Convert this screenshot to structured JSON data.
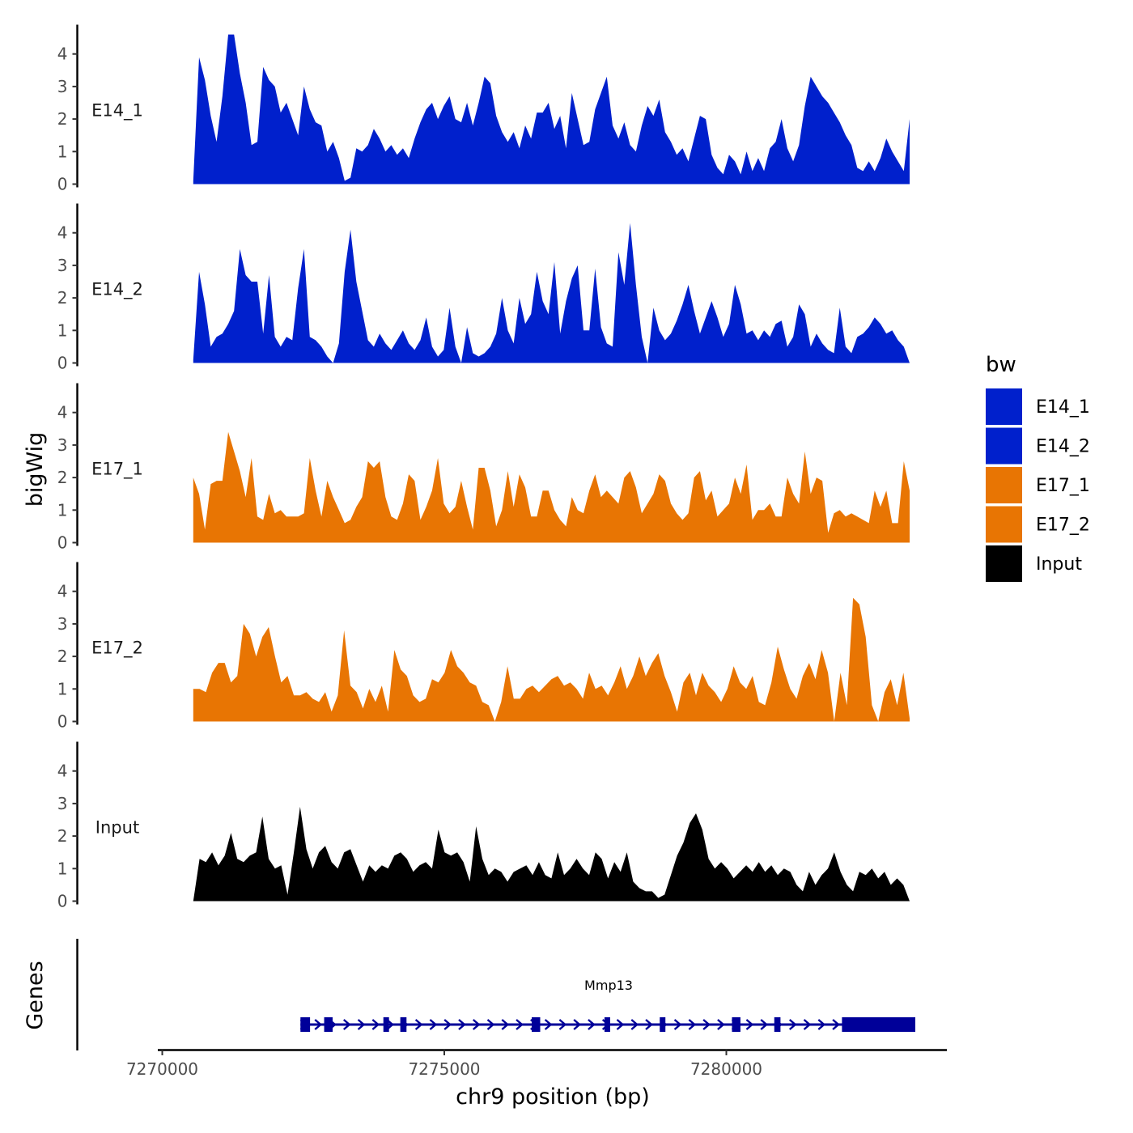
{
  "chart_data": {
    "type": "area",
    "ylabel": "bigWig",
    "genes_label": "Genes",
    "xlabel": "chr9 position (bp)",
    "xlim": [
      7269900,
      7283900
    ],
    "x_ticks": [
      7270000,
      7275000,
      7280000
    ],
    "x_tick_labels": [
      "7270000",
      "7275000",
      "7280000"
    ],
    "ylim": [
      0,
      4.7
    ],
    "y_ticks": [
      0,
      1,
      2,
      3,
      4
    ],
    "y_tick_labels": [
      "0",
      "1",
      "2",
      "3",
      "4"
    ],
    "legend": {
      "title": "bw",
      "position": "right",
      "entries": [
        {
          "label": "E14_1",
          "color": "#0020CC"
        },
        {
          "label": "E14_2",
          "color": "#0020CC"
        },
        {
          "label": "E17_1",
          "color": "#E87503"
        },
        {
          "label": "E17_2",
          "color": "#E87503"
        },
        {
          "label": "Input",
          "color": "#000000"
        }
      ]
    },
    "series": [
      {
        "name": "E14_1",
        "color": "#0020CC",
        "x_start": 7270550,
        "x_end": 7283250,
        "values": [
          0.1,
          3.9,
          3.2,
          2.1,
          1.3,
          2.7,
          4.6,
          4.6,
          3.4,
          2.5,
          1.2,
          1.3,
          3.6,
          3.2,
          3.0,
          2.2,
          2.5,
          2.0,
          1.5,
          3.0,
          2.3,
          1.9,
          1.8,
          1.0,
          1.3,
          0.8,
          0.1,
          0.2,
          1.1,
          1.0,
          1.2,
          1.7,
          1.4,
          1.0,
          1.2,
          0.9,
          1.1,
          0.8,
          1.4,
          1.9,
          2.3,
          2.5,
          2.0,
          2.4,
          2.7,
          2.0,
          1.9,
          2.5,
          1.8,
          2.5,
          3.3,
          3.1,
          2.1,
          1.6,
          1.3,
          1.6,
          1.1,
          1.8,
          1.4,
          2.2,
          2.2,
          2.5,
          1.7,
          2.1,
          1.1,
          2.8,
          2.0,
          1.2,
          1.3,
          2.3,
          2.8,
          3.3,
          1.8,
          1.4,
          1.9,
          1.2,
          1.0,
          1.8,
          2.4,
          2.1,
          2.6,
          1.6,
          1.3,
          0.9,
          1.1,
          0.7,
          1.4,
          2.1,
          2.0,
          0.9,
          0.5,
          0.3,
          0.9,
          0.7,
          0.3,
          1.0,
          0.4,
          0.8,
          0.4,
          1.1,
          1.3,
          2.0,
          1.1,
          0.7,
          1.2,
          2.4,
          3.3,
          3.0,
          2.7,
          2.5,
          2.2,
          1.9,
          1.5,
          1.2,
          0.5,
          0.4,
          0.7,
          0.4,
          0.8,
          1.4,
          1.0,
          0.7,
          0.4,
          2.0
        ],
        "label": "E14_1"
      },
      {
        "name": "E14_2",
        "color": "#0020CC",
        "x_start": 7270550,
        "x_end": 7283250,
        "values": [
          0.1,
          2.8,
          1.8,
          0.5,
          0.8,
          0.9,
          1.2,
          1.6,
          3.5,
          2.7,
          2.5,
          2.5,
          0.9,
          2.7,
          0.8,
          0.5,
          0.8,
          0.7,
          2.3,
          3.5,
          0.8,
          0.7,
          0.5,
          0.2,
          0.0,
          0.6,
          2.8,
          4.1,
          2.5,
          1.6,
          0.7,
          0.5,
          0.9,
          0.6,
          0.4,
          0.7,
          1.0,
          0.6,
          0.4,
          0.7,
          1.4,
          0.5,
          0.2,
          0.4,
          1.7,
          0.5,
          0.0,
          1.1,
          0.3,
          0.2,
          0.3,
          0.5,
          0.9,
          2.0,
          1.0,
          0.6,
          2.0,
          1.2,
          1.5,
          2.8,
          1.9,
          1.5,
          3.1,
          0.9,
          1.9,
          2.6,
          3.0,
          1.0,
          1.0,
          2.9,
          1.1,
          0.6,
          0.5,
          3.4,
          2.4,
          4.3,
          2.4,
          0.8,
          0.0,
          1.7,
          1.0,
          0.7,
          0.9,
          1.3,
          1.8,
          2.4,
          1.6,
          0.9,
          1.4,
          1.9,
          1.4,
          0.8,
          1.2,
          2.4,
          1.8,
          0.9,
          1.0,
          0.7,
          1.0,
          0.8,
          1.2,
          1.3,
          0.5,
          0.8,
          1.8,
          1.5,
          0.5,
          0.9,
          0.6,
          0.4,
          0.3,
          1.7,
          0.5,
          0.3,
          0.8,
          0.9,
          1.1,
          1.4,
          1.2,
          0.9,
          1.0,
          0.7,
          0.5,
          0.0
        ],
        "label": "E14_2"
      },
      {
        "name": "E17_1",
        "color": "#E87503",
        "x_start": 7270550,
        "x_end": 7283250,
        "values": [
          2.0,
          1.5,
          0.4,
          1.8,
          1.9,
          1.9,
          3.4,
          2.8,
          2.2,
          1.4,
          2.6,
          0.8,
          0.7,
          1.5,
          0.9,
          1.0,
          0.8,
          0.8,
          0.8,
          0.9,
          2.6,
          1.6,
          0.8,
          1.9,
          1.4,
          1.0,
          0.6,
          0.7,
          1.1,
          1.4,
          2.5,
          2.3,
          2.5,
          1.4,
          0.8,
          0.7,
          1.2,
          2.1,
          1.9,
          0.7,
          1.1,
          1.6,
          2.6,
          1.2,
          0.9,
          1.1,
          1.9,
          1.1,
          0.4,
          2.3,
          2.3,
          1.6,
          0.5,
          1.0,
          2.2,
          1.1,
          2.1,
          1.7,
          0.8,
          0.8,
          1.6,
          1.6,
          1.0,
          0.7,
          0.5,
          1.4,
          1.0,
          0.9,
          1.6,
          2.1,
          1.4,
          1.6,
          1.4,
          1.2,
          2.0,
          2.2,
          1.7,
          0.9,
          1.2,
          1.5,
          2.1,
          1.9,
          1.2,
          0.9,
          0.7,
          0.9,
          2.0,
          2.2,
          1.3,
          1.6,
          0.8,
          1.0,
          1.2,
          2.0,
          1.5,
          2.4,
          0.7,
          1.0,
          1.0,
          1.2,
          0.8,
          0.8,
          2.0,
          1.5,
          1.2,
          2.8,
          1.5,
          2.0,
          1.9,
          0.3,
          0.9,
          1.0,
          0.8,
          0.9,
          0.8,
          0.7,
          0.6,
          1.6,
          1.1,
          1.6,
          0.6,
          0.6,
          2.5,
          1.6
        ],
        "label": "E17_1"
      },
      {
        "name": "E17_2",
        "color": "#E87503",
        "x_start": 7270550,
        "x_end": 7283250,
        "values": [
          1.0,
          1.0,
          0.9,
          1.5,
          1.8,
          1.8,
          1.2,
          1.4,
          3.0,
          2.7,
          2.0,
          2.6,
          2.9,
          2.0,
          1.2,
          1.4,
          0.8,
          0.8,
          0.9,
          0.7,
          0.6,
          0.9,
          0.3,
          0.8,
          2.8,
          1.1,
          0.9,
          0.4,
          1.0,
          0.6,
          1.1,
          0.3,
          2.2,
          1.6,
          1.4,
          0.8,
          0.6,
          0.7,
          1.3,
          1.2,
          1.5,
          2.2,
          1.7,
          1.5,
          1.2,
          1.1,
          0.6,
          0.5,
          0.0,
          0.6,
          1.7,
          0.7,
          0.7,
          1.0,
          1.1,
          0.9,
          1.1,
          1.3,
          1.4,
          1.1,
          1.2,
          1.0,
          0.7,
          1.5,
          1.0,
          1.1,
          0.8,
          1.2,
          1.7,
          1.0,
          1.4,
          2.0,
          1.4,
          1.8,
          2.1,
          1.4,
          0.9,
          0.3,
          1.2,
          1.5,
          0.8,
          1.5,
          1.1,
          0.9,
          0.6,
          1.0,
          1.7,
          1.2,
          1.0,
          1.4,
          0.6,
          0.5,
          1.2,
          2.3,
          1.6,
          1.0,
          0.7,
          1.4,
          1.8,
          1.3,
          2.2,
          1.5,
          0.0,
          1.5,
          0.5,
          3.8,
          3.6,
          2.6,
          0.5,
          0.0,
          0.9,
          1.3,
          0.5,
          1.5,
          0.1
        ],
        "label": "E17_2"
      },
      {
        "name": "Input",
        "color": "#000000",
        "x_start": 7270550,
        "x_end": 7283250,
        "values": [
          0.0,
          1.3,
          1.2,
          1.5,
          1.1,
          1.4,
          2.1,
          1.3,
          1.2,
          1.4,
          1.5,
          2.6,
          1.3,
          1.0,
          1.1,
          0.2,
          1.5,
          2.9,
          1.6,
          1.0,
          1.5,
          1.7,
          1.2,
          1.0,
          1.5,
          1.6,
          1.1,
          0.6,
          1.1,
          0.9,
          1.1,
          1.0,
          1.4,
          1.5,
          1.3,
          0.9,
          1.1,
          1.2,
          1.0,
          2.2,
          1.5,
          1.4,
          1.5,
          1.2,
          0.6,
          2.3,
          1.3,
          0.8,
          1.0,
          0.9,
          0.6,
          0.9,
          1.0,
          1.1,
          0.8,
          1.2,
          0.8,
          0.7,
          1.5,
          0.8,
          1.0,
          1.3,
          1.0,
          0.8,
          1.5,
          1.3,
          0.7,
          1.2,
          0.9,
          1.5,
          0.6,
          0.4,
          0.3,
          0.3,
          0.1,
          0.2,
          0.8,
          1.4,
          1.8,
          2.4,
          2.7,
          2.2,
          1.3,
          1.0,
          1.2,
          1.0,
          0.7,
          0.9,
          1.1,
          0.9,
          1.2,
          0.9,
          1.1,
          0.8,
          1.0,
          0.9,
          0.5,
          0.3,
          0.9,
          0.5,
          0.8,
          1.0,
          1.5,
          0.9,
          0.5,
          0.3,
          0.9,
          0.8,
          1.0,
          0.7,
          0.9,
          0.5,
          0.7,
          0.5,
          0.0
        ],
        "label": "Input"
      }
    ],
    "gene_track": {
      "color": "#000099",
      "gene": {
        "label": "Mmp13",
        "start": 7272450,
        "end": 7283350,
        "strand": "+",
        "exons": [
          [
            7272450,
            7272620
          ],
          [
            7272870,
            7273020
          ],
          [
            7273920,
            7274020
          ],
          [
            7274220,
            7274330
          ],
          [
            7276550,
            7276700
          ],
          [
            7277840,
            7277940
          ],
          [
            7278820,
            7278920
          ],
          [
            7280100,
            7280250
          ],
          [
            7280850,
            7280960
          ],
          [
            7282050,
            7283350
          ]
        ]
      }
    }
  }
}
